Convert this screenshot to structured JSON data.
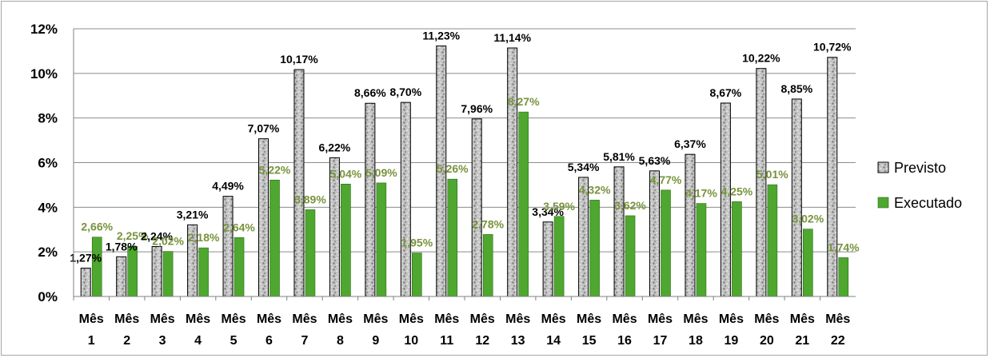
{
  "chart_data": {
    "type": "bar",
    "categories": [
      "Mês 1",
      "Mês 2",
      "Mês 3",
      "Mês 4",
      "Mês 5",
      "Mês 6",
      "Mês 7",
      "Mês 8",
      "Mês 9",
      "Mês 10",
      "Mês 11",
      "Mês 12",
      "Mês 13",
      "Mês 14",
      "Mês 15",
      "Mês 16",
      "Mês 17",
      "Mês 18",
      "Mês 19",
      "Mês 20",
      "Mês 21",
      "Mês 22"
    ],
    "series": [
      {
        "name": "Previsto",
        "color": "#b0b0b0",
        "values": [
          1.27,
          1.78,
          2.24,
          3.21,
          4.49,
          7.07,
          10.17,
          6.22,
          8.66,
          8.7,
          11.23,
          7.96,
          11.14,
          3.34,
          5.34,
          5.81,
          5.63,
          6.37,
          8.67,
          10.22,
          8.85,
          10.72
        ],
        "labels": [
          "1,27%",
          "1,78%",
          "2,24%",
          "3,21%",
          "4,49%",
          "7,07%",
          "10,17%",
          "6,22%",
          "8,66%",
          "8,70%",
          "11,23%",
          "7,96%",
          "11,14%",
          "3,34%",
          "5,34%",
          "5,81%",
          "5,63%",
          "6,37%",
          "8,67%",
          "10,22%",
          "8,85%",
          "10,72%"
        ]
      },
      {
        "name": "Executado",
        "color": "#4ea72e",
        "label_color": "#77933c",
        "values": [
          2.66,
          2.25,
          2.02,
          2.18,
          2.64,
          5.22,
          3.89,
          5.04,
          5.09,
          1.95,
          5.26,
          2.78,
          8.27,
          3.59,
          4.32,
          3.62,
          4.77,
          4.17,
          4.25,
          5.01,
          3.02,
          1.74
        ],
        "labels": [
          "2,66%",
          "2,25%",
          "2,02%",
          "2,18%",
          "2,64%",
          "5,22%",
          "3,89%",
          "5,04%",
          "5,09%",
          "1,95%",
          "5,26%",
          "2,78%",
          "8,27%",
          "3,59%",
          "4,32%",
          "3,62%",
          "4,77%",
          "4,17%",
          "4,25%",
          "5,01%",
          "3,02%",
          "1,74%"
        ]
      }
    ],
    "y_ticks": [
      "0%",
      "2%",
      "4%",
      "6%",
      "8%",
      "10%",
      "12%"
    ],
    "ylim": [
      0,
      12
    ],
    "grid": true,
    "legend": "right"
  }
}
